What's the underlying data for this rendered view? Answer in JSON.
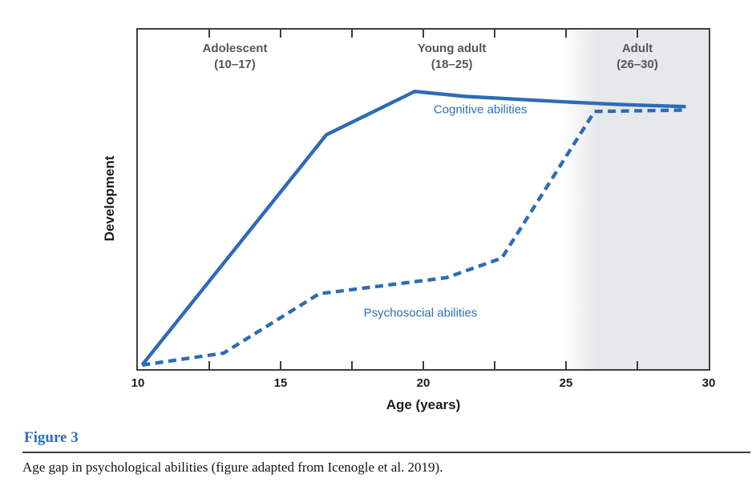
{
  "figure": {
    "label": "Figure 3",
    "caption": "Age gap in psychological abilities (figure adapted from Icenogle et al. 2019)."
  },
  "chart_data": {
    "type": "line",
    "title": "",
    "xlabel": "Age (years)",
    "ylabel": "Development",
    "xlim": [
      10,
      30
    ],
    "ylim": [
      0,
      1
    ],
    "grid": false,
    "y_tick_labels": [],
    "x_major_ticks": [
      10,
      15,
      20,
      25,
      30
    ],
    "x_inner_ticks": [
      12.5,
      15,
      17.5,
      20,
      22.5,
      25,
      27.5
    ],
    "frame_color": "#3e3e3e",
    "shade_color": "#e7e8ea",
    "line_color": "#2d6cb5",
    "regions": [
      {
        "label_line1": "Adolescent",
        "label_line2": "(10–17)",
        "start": 10,
        "end": 17,
        "shaded": true,
        "label_age": 13.4,
        "fade_start": 16.3,
        "fade_end": 17.15
      },
      {
        "label_line1": "Young adult",
        "label_line2": "(18–25)",
        "start": 18,
        "end": 25,
        "shaded": false,
        "label_age": 21.0
      },
      {
        "label_line1": "Adult",
        "label_line2": "(26–30)",
        "start": 26,
        "end": 30,
        "shaded": true,
        "label_age": 27.5,
        "fade_start": 24.8,
        "fade_end": 26.1
      }
    ],
    "series": [
      {
        "name": "Cognitive abilities",
        "style": "solid",
        "color": "#2d6cb5",
        "points": [
          [
            10.15,
            0.012
          ],
          [
            16.6,
            0.69
          ],
          [
            19.7,
            0.818
          ],
          [
            21.5,
            0.803
          ],
          [
            25.0,
            0.787
          ],
          [
            27.0,
            0.779
          ],
          [
            29.2,
            0.773
          ]
        ]
      },
      {
        "name": "Psychosocial abilities",
        "style": "dashed",
        "color": "#2d6cb5",
        "points": [
          [
            10.15,
            0.012
          ],
          [
            13.0,
            0.047
          ],
          [
            16.35,
            0.222
          ],
          [
            17.3,
            0.232
          ],
          [
            20.8,
            0.269
          ],
          [
            22.75,
            0.327
          ],
          [
            26.0,
            0.759
          ],
          [
            29.2,
            0.763
          ]
        ]
      }
    ],
    "series_labels": [
      {
        "text": "Cognitive abilities",
        "age": 22.0,
        "dev": 0.765
      },
      {
        "text": "Psychosocial abilities",
        "age": 19.9,
        "dev": 0.166
      }
    ]
  }
}
